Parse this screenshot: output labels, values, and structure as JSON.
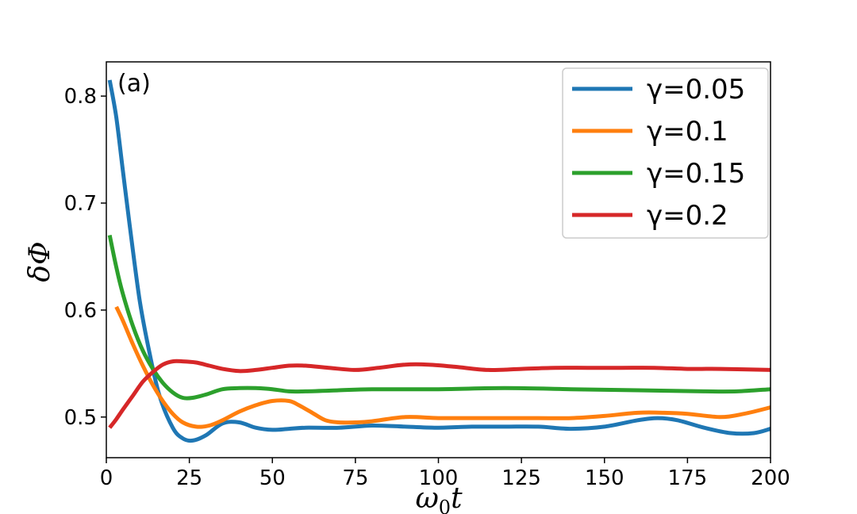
{
  "chart_data": {
    "type": "line",
    "annotation": "(a)",
    "xlabel": "ω₀t",
    "ylabel": "δΦ",
    "xlim": [
      0,
      200
    ],
    "ylim": [
      0.462,
      0.832
    ],
    "xticks": [
      0,
      25,
      50,
      75,
      100,
      125,
      150,
      175,
      200
    ],
    "yticks": [
      0.5,
      0.6,
      0.7,
      0.8
    ],
    "grid": false,
    "legend_position": "top-right",
    "series": [
      {
        "name": "γ=0.05",
        "color": "#1f77b4",
        "x": [
          1,
          3,
          5,
          7,
          10,
          13,
          16,
          20,
          23,
          26,
          30,
          35,
          40,
          45,
          50,
          55,
          60,
          70,
          80,
          90,
          100,
          110,
          120,
          130,
          140,
          150,
          160,
          166,
          172,
          180,
          188,
          195,
          200
        ],
        "y": [
          0.815,
          0.78,
          0.73,
          0.68,
          0.61,
          0.56,
          0.52,
          0.49,
          0.48,
          0.478,
          0.483,
          0.494,
          0.495,
          0.49,
          0.488,
          0.489,
          0.49,
          0.49,
          0.492,
          0.491,
          0.49,
          0.491,
          0.491,
          0.491,
          0.489,
          0.491,
          0.497,
          0.499,
          0.497,
          0.49,
          0.485,
          0.485,
          0.489
        ]
      },
      {
        "name": "γ=0.1",
        "color": "#ff7f0e",
        "x": [
          3,
          5,
          8,
          11,
          14,
          17,
          20,
          23,
          27,
          31,
          35,
          40,
          45,
          50,
          55,
          58,
          62,
          66,
          70,
          75,
          80,
          90,
          100,
          110,
          120,
          130,
          140,
          150,
          160,
          168,
          175,
          185,
          192,
          200
        ],
        "y": [
          0.603,
          0.59,
          0.568,
          0.548,
          0.53,
          0.515,
          0.503,
          0.495,
          0.491,
          0.492,
          0.497,
          0.505,
          0.511,
          0.515,
          0.515,
          0.511,
          0.504,
          0.497,
          0.495,
          0.495,
          0.496,
          0.5,
          0.499,
          0.499,
          0.499,
          0.499,
          0.499,
          0.501,
          0.504,
          0.504,
          0.503,
          0.5,
          0.503,
          0.509
        ]
      },
      {
        "name": "γ=0.15",
        "color": "#2ca02c",
        "x": [
          1,
          3,
          5,
          8,
          11,
          14,
          17,
          20,
          23,
          26,
          30,
          35,
          40,
          45,
          50,
          55,
          60,
          70,
          80,
          100,
          120,
          140,
          160,
          180,
          190,
          200
        ],
        "y": [
          0.67,
          0.64,
          0.615,
          0.585,
          0.562,
          0.545,
          0.532,
          0.523,
          0.518,
          0.518,
          0.521,
          0.526,
          0.527,
          0.527,
          0.526,
          0.524,
          0.524,
          0.525,
          0.526,
          0.526,
          0.527,
          0.526,
          0.525,
          0.524,
          0.524,
          0.526
        ]
      },
      {
        "name": "γ=0.2",
        "color": "#d62728",
        "x": [
          1,
          3,
          5,
          8,
          11,
          14,
          17,
          20,
          23,
          27,
          31,
          35,
          40,
          45,
          50,
          55,
          60,
          67,
          75,
          82,
          90,
          97,
          105,
          115,
          125,
          135,
          145,
          155,
          165,
          175,
          185,
          200
        ],
        "y": [
          0.49,
          0.498,
          0.507,
          0.52,
          0.533,
          0.542,
          0.549,
          0.552,
          0.552,
          0.551,
          0.548,
          0.545,
          0.543,
          0.544,
          0.546,
          0.548,
          0.548,
          0.546,
          0.544,
          0.546,
          0.549,
          0.549,
          0.547,
          0.544,
          0.545,
          0.546,
          0.546,
          0.546,
          0.546,
          0.545,
          0.545,
          0.544
        ]
      }
    ]
  }
}
